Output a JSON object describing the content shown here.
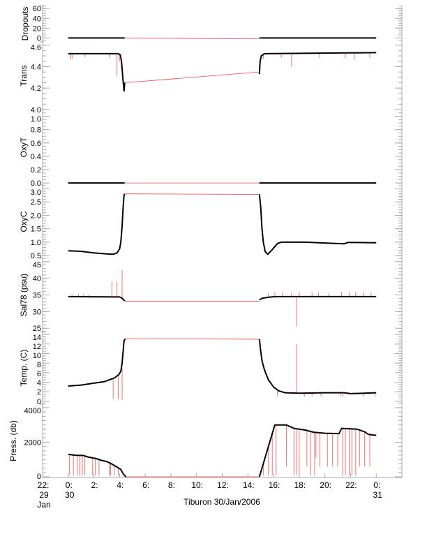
{
  "chart_data": {
    "type": "line",
    "xlabel": "Tiburon 30/Jan/2006",
    "x_unit": "hours from 30/Jan/2006 00:00",
    "xlim": [
      -2,
      26
    ],
    "x_ticks": [
      {
        "t": -2,
        "l1": "22:",
        "l2": "29",
        "l3": "Jan"
      },
      {
        "t": 0,
        "l1": "0:",
        "l2": "30"
      },
      {
        "t": 2,
        "l1": "2:"
      },
      {
        "t": 4,
        "l1": "4:"
      },
      {
        "t": 6,
        "l1": "6:"
      },
      {
        "t": 8,
        "l1": "8:"
      },
      {
        "t": 10,
        "l1": "10:"
      },
      {
        "t": 12,
        "l1": "12:"
      },
      {
        "t": 14,
        "l1": "14:"
      },
      {
        "t": 16,
        "l1": "16:"
      },
      {
        "t": 18,
        "l1": "18:"
      },
      {
        "t": 20,
        "l1": "20:"
      },
      {
        "t": 22,
        "l1": "22:"
      },
      {
        "t": 24,
        "l1": "0:",
        "l2": "31"
      }
    ],
    "colors": {
      "data": "#000000",
      "flagged": "#ff4040",
      "axis": "#aaaaaa"
    },
    "panels": [
      {
        "ylabel": "Dropouts",
        "ylim": [
          -8,
          66
        ],
        "ticks": [
          "0",
          "20",
          "40",
          "60"
        ],
        "minor": 5,
        "series": [
          [
            0,
            0
          ],
          [
            4.4,
            0
          ],
          null,
          [
            14.9,
            0
          ],
          [
            24,
            0
          ]
        ],
        "gap": [
          [
            4.4,
            0
          ],
          [
            14.9,
            -2
          ]
        ],
        "spikes": []
      },
      {
        "ylabel": "Trans",
        "ylim": [
          4.0,
          4.63
        ],
        "ticks": [
          "4.0",
          "4.2",
          "4.4",
          "4.6"
        ],
        "minor": 0.05,
        "series": [
          [
            0,
            4.52
          ],
          [
            3.9,
            4.52
          ],
          [
            4.05,
            4.51
          ],
          [
            4.15,
            4.45
          ],
          [
            4.25,
            4.3
          ],
          [
            4.35,
            4.17
          ],
          [
            4.4,
            4.25
          ],
          null,
          [
            14.9,
            4.33
          ],
          [
            14.95,
            4.45
          ],
          [
            15.05,
            4.5
          ],
          [
            15.3,
            4.52
          ],
          [
            24,
            4.53
          ]
        ],
        "gap": [
          [
            4.4,
            4.25
          ],
          [
            14.9,
            4.35
          ]
        ],
        "spikes": [
          [
            0.2,
            4.52,
            4.47
          ],
          [
            0.3,
            4.52,
            4.47
          ],
          [
            1.3,
            4.52,
            4.49
          ],
          [
            3.2,
            4.52,
            4.48
          ],
          [
            3.8,
            4.52,
            4.31
          ],
          [
            4.0,
            4.52,
            4.45
          ],
          [
            15.2,
            4.52,
            4.47
          ],
          [
            16.6,
            4.53,
            4.48
          ],
          [
            17.4,
            4.53,
            4.4
          ],
          [
            19.6,
            4.53,
            4.48
          ],
          [
            21.6,
            4.53,
            4.48
          ],
          [
            22.3,
            4.53,
            4.46
          ],
          [
            23.5,
            4.53,
            4.48
          ]
        ]
      },
      {
        "ylabel": "OxyT",
        "ylim": [
          -0.03,
          1.1
        ],
        "ticks": [
          "0.0",
          "0.2",
          "0.4",
          "0.6",
          "0.8",
          "1.0"
        ],
        "minor": 0.05,
        "series": [
          [
            0,
            0
          ],
          [
            4.4,
            0
          ],
          null,
          [
            14.9,
            0
          ],
          [
            24,
            0
          ]
        ],
        "gap": [
          [
            4.4,
            0
          ],
          [
            14.9,
            0
          ]
        ],
        "spikes": []
      },
      {
        "ylabel": "OxyC",
        "ylim": [
          0.4,
          3.13
        ],
        "ticks": [
          "0.5",
          "1.0",
          "1.5",
          "2.0",
          "2.5",
          "3.0"
        ],
        "minor": 0.1,
        "series": [
          [
            0,
            0.68
          ],
          [
            1,
            0.66
          ],
          [
            2,
            0.6
          ],
          [
            3,
            0.56
          ],
          [
            3.5,
            0.55
          ],
          [
            3.8,
            0.6
          ],
          [
            4.0,
            0.75
          ],
          [
            4.1,
            1.0
          ],
          [
            4.2,
            1.6
          ],
          [
            4.28,
            2.3
          ],
          [
            4.35,
            2.75
          ],
          [
            4.4,
            2.8
          ],
          null,
          [
            14.9,
            2.78
          ],
          [
            15.0,
            2.3
          ],
          [
            15.1,
            1.5
          ],
          [
            15.2,
            1.0
          ],
          [
            15.35,
            0.65
          ],
          [
            15.55,
            0.55
          ],
          [
            15.9,
            0.72
          ],
          [
            16.3,
            0.95
          ],
          [
            16.6,
            1.0
          ],
          [
            18.5,
            1.0
          ],
          [
            20,
            0.97
          ],
          [
            21.5,
            0.94
          ],
          [
            21.8,
            0.99
          ],
          [
            24,
            0.98
          ]
        ],
        "gap": [
          [
            4.4,
            2.8
          ],
          [
            14.9,
            2.78
          ]
        ],
        "spikes": []
      },
      {
        "ylabel": "Sal78 (psu)",
        "ylim": [
          24,
          46
        ],
        "ticks": [
          "25",
          "30",
          "35",
          "40",
          "45"
        ],
        "minor": 1,
        "series": [
          [
            0,
            34.5
          ],
          [
            4.0,
            34.4
          ],
          [
            4.2,
            34.0
          ],
          [
            4.4,
            33.2
          ],
          null,
          [
            14.9,
            33.5
          ],
          [
            15.1,
            34.0
          ],
          [
            15.6,
            34.3
          ],
          [
            16.2,
            34.5
          ],
          [
            24,
            34.5
          ]
        ],
        "gap": [
          [
            4.4,
            33.1
          ],
          [
            14.9,
            33.1
          ]
        ],
        "spikes": [
          [
            0.3,
            34.5,
            35.2
          ],
          [
            0.8,
            34.5,
            35.3
          ],
          [
            1.2,
            34.5,
            35.3
          ],
          [
            1.6,
            34.5,
            35.1
          ],
          [
            3.4,
            34.5,
            39.0
          ],
          [
            3.8,
            34.5,
            39.0
          ],
          [
            4.2,
            34.0,
            42.5
          ],
          [
            15.6,
            34.4,
            35.5
          ],
          [
            16.1,
            34.5,
            35.8
          ],
          [
            16.7,
            34.5,
            35.9
          ],
          [
            17.4,
            34.5,
            35.7
          ],
          [
            17.8,
            34.5,
            25.5
          ],
          [
            18.0,
            34.5,
            35.9
          ],
          [
            19.0,
            34.5,
            35.8
          ],
          [
            19.5,
            34.5,
            35.7
          ],
          [
            20.3,
            34.5,
            35.6
          ],
          [
            21.3,
            34.5,
            35.9
          ],
          [
            21.9,
            34.5,
            35.9
          ],
          [
            22.4,
            34.5,
            35.9
          ],
          [
            23.0,
            34.5,
            35.8
          ],
          [
            23.6,
            34.5,
            35.8
          ]
        ]
      },
      {
        "ylabel": "Temp. (C)",
        "ylim": [
          -0.6,
          14.6
        ],
        "ticks": [
          "0",
          "2",
          "4",
          "6",
          "8",
          "10",
          "12",
          "14"
        ],
        "minor": 0.5,
        "series": [
          [
            0,
            3.2
          ],
          [
            1,
            3.4
          ],
          [
            2,
            3.8
          ],
          [
            2.8,
            4.1
          ],
          [
            3.2,
            4.5
          ],
          [
            3.6,
            4.9
          ],
          [
            3.95,
            5.6
          ],
          [
            4.1,
            6.3
          ],
          [
            4.2,
            8
          ],
          [
            4.28,
            10.5
          ],
          [
            4.35,
            12.7
          ],
          [
            4.45,
            13.1
          ],
          null,
          [
            14.9,
            13.0
          ],
          [
            15.0,
            10.5
          ],
          [
            15.1,
            8.5
          ],
          [
            15.3,
            6.5
          ],
          [
            15.6,
            4.5
          ],
          [
            16.0,
            3.0
          ],
          [
            16.4,
            2.2
          ],
          [
            16.9,
            1.8
          ],
          [
            18,
            1.7
          ],
          [
            20,
            1.8
          ],
          [
            21.5,
            1.8
          ],
          [
            22,
            1.6
          ],
          [
            24,
            1.8
          ]
        ],
        "gap": [
          [
            4.45,
            13.1
          ],
          [
            14.9,
            13.0
          ]
        ],
        "spikes": [
          [
            3.5,
            4.7,
            0.5
          ],
          [
            3.9,
            5.2,
            0.5
          ],
          [
            4.2,
            7.0,
            0.3
          ],
          [
            16.3,
            2.2,
            1.0
          ],
          [
            17.8,
            1.7,
            12.0
          ],
          [
            18.4,
            1.7,
            1.0
          ],
          [
            19.0,
            1.8,
            1.0
          ],
          [
            19.7,
            1.8,
            1.0
          ],
          [
            21.2,
            1.8,
            1.0
          ],
          [
            21.4,
            1.8,
            1.0
          ],
          [
            23.0,
            1.8,
            1.0
          ],
          [
            23.9,
            1.8,
            1.0
          ]
        ]
      },
      {
        "ylabel": "Press. (db)",
        "ylim": [
          -40,
          4200
        ],
        "ticks": [
          "0",
          "2000",
          "4000"
        ],
        "minor": 250,
        "series": [
          [
            0,
            1300
          ],
          [
            0.5,
            1250
          ],
          [
            1.2,
            1230
          ],
          [
            1.5,
            1150
          ],
          [
            2.2,
            1050
          ],
          [
            2.6,
            950
          ],
          [
            3.0,
            880
          ],
          [
            3.3,
            780
          ],
          [
            3.6,
            650
          ],
          [
            3.9,
            520
          ],
          [
            4.1,
            420
          ],
          [
            4.3,
            150
          ],
          [
            4.5,
            0
          ],
          null,
          [
            14.9,
            0
          ],
          [
            16.1,
            3000
          ],
          [
            17.0,
            3000
          ],
          [
            17.6,
            2800
          ],
          [
            18.5,
            2700
          ],
          [
            19.1,
            2580
          ],
          [
            20.0,
            2520
          ],
          [
            21.1,
            2500
          ],
          [
            21.3,
            2800
          ],
          [
            22.5,
            2760
          ],
          [
            23.1,
            2600
          ],
          [
            23.4,
            2450
          ],
          [
            24,
            2400
          ]
        ],
        "gap": [
          [
            4.5,
            0
          ],
          [
            14.9,
            0
          ]
        ],
        "spikes": [
          [
            0.1,
            1300,
            80
          ],
          [
            0.4,
            1260,
            80
          ],
          [
            0.7,
            1250,
            80
          ],
          [
            0.9,
            1240,
            80
          ],
          [
            1.1,
            1230,
            80
          ],
          [
            1.3,
            1200,
            80
          ],
          [
            1.9,
            1080,
            80
          ],
          [
            2.1,
            1050,
            80
          ],
          [
            2.4,
            960,
            80
          ],
          [
            3.2,
            800,
            80
          ],
          [
            3.3,
            790,
            80
          ],
          [
            3.6,
            650,
            80
          ],
          [
            3.9,
            520,
            80
          ],
          [
            15.2,
            700,
            80
          ],
          [
            15.6,
            1700,
            80
          ],
          [
            15.9,
            2600,
            80
          ],
          [
            16.2,
            3000,
            80
          ],
          [
            17.0,
            3000,
            600
          ],
          [
            17.6,
            2800,
            80
          ],
          [
            17.8,
            2780,
            80
          ],
          [
            18.0,
            2760,
            80
          ],
          [
            18.6,
            2700,
            600
          ],
          [
            18.9,
            2650,
            80
          ],
          [
            19.2,
            2580,
            80
          ],
          [
            19.3,
            2570,
            1100
          ],
          [
            19.6,
            2540,
            600
          ],
          [
            20.2,
            2520,
            600
          ],
          [
            20.6,
            2510,
            600
          ],
          [
            21.0,
            2500,
            600
          ],
          [
            21.4,
            2790,
            80
          ],
          [
            21.6,
            2790,
            80
          ],
          [
            21.9,
            2780,
            80
          ],
          [
            22.1,
            2770,
            80
          ],
          [
            22.4,
            2760,
            80
          ],
          [
            22.7,
            2740,
            600
          ],
          [
            23.1,
            2600,
            600
          ],
          [
            23.5,
            2450,
            600
          ]
        ]
      }
    ]
  }
}
